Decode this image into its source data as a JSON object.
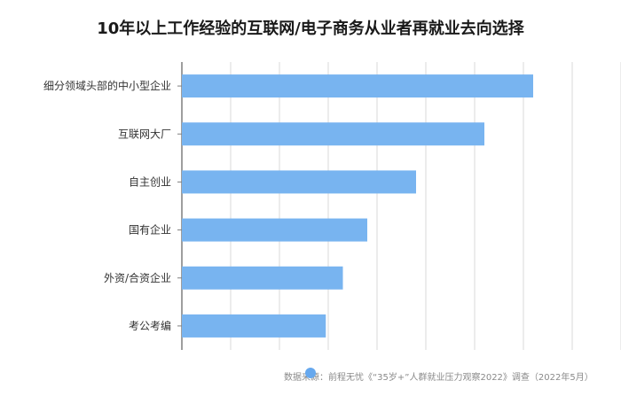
{
  "title": "10年以上工作经验的互联网/电子商务从业者再就业去向选择",
  "source": "数据来源：前程无忧《“35岁+”人群就业压力观察2022》调查（2022年5月）",
  "colors": {
    "bar": "#78b4f0",
    "grid": "#d9d9d9",
    "axis": "#7f7f7f"
  },
  "chart_data": {
    "type": "bar",
    "orientation": "horizontal",
    "categories": [
      "细分领域头部的中小型企业",
      "互联网大厂",
      "自主创业",
      "国有企业",
      "外资/合资企业",
      "考公考编"
    ],
    "values": [
      72,
      62,
      48,
      38,
      33,
      29.5
    ],
    "xlim": [
      0,
      90
    ],
    "grid": true
  }
}
